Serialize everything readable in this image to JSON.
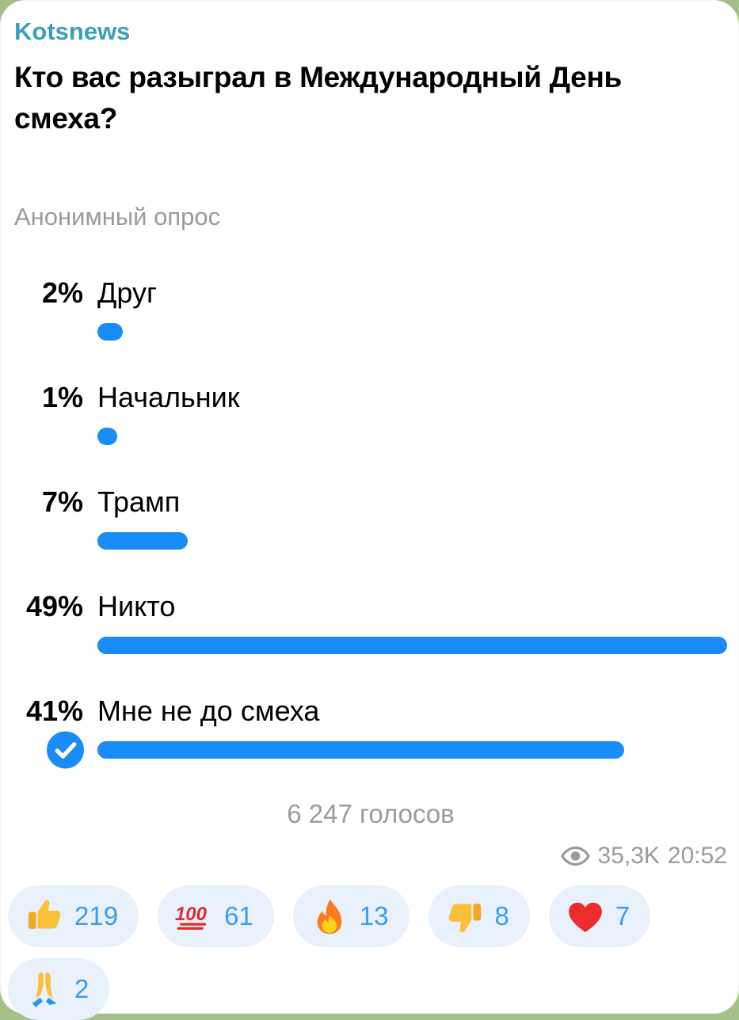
{
  "channel": {
    "name": "Kotsnews",
    "color": "#3aa0b8"
  },
  "poll": {
    "question": "Кто вас разыграл в Международный День смеха?",
    "type_label": "Анонимный опрос",
    "bar_color": "#1a8cf8",
    "max_value": 49,
    "options": [
      {
        "percent": "2%",
        "label": "Друг",
        "value": 2,
        "voted": false
      },
      {
        "percent": "1%",
        "label": "Начальник",
        "value": 1,
        "voted": false
      },
      {
        "percent": "7%",
        "label": "Трамп",
        "value": 7,
        "voted": false
      },
      {
        "percent": "49%",
        "label": "Никто",
        "value": 49,
        "voted": false
      },
      {
        "percent": "41%",
        "label": "Мне не до смеха",
        "value": 41,
        "voted": true
      }
    ],
    "votes_label": "6 247 голосов"
  },
  "meta": {
    "views": "35,3K",
    "time": "20:52"
  },
  "reactions": [
    {
      "icon": "thumbs-up-icon",
      "emoji": "👍",
      "count": "219"
    },
    {
      "icon": "hundred-points-icon",
      "emoji": "💯",
      "count": "61"
    },
    {
      "icon": "fire-icon",
      "emoji": "🔥",
      "count": "13"
    },
    {
      "icon": "thumbs-down-icon",
      "emoji": "👎",
      "count": "8"
    },
    {
      "icon": "red-heart-icon",
      "emoji": "❤️",
      "count": "7"
    },
    {
      "icon": "folded-hands-icon",
      "emoji": "🙏",
      "count": "2"
    }
  ]
}
